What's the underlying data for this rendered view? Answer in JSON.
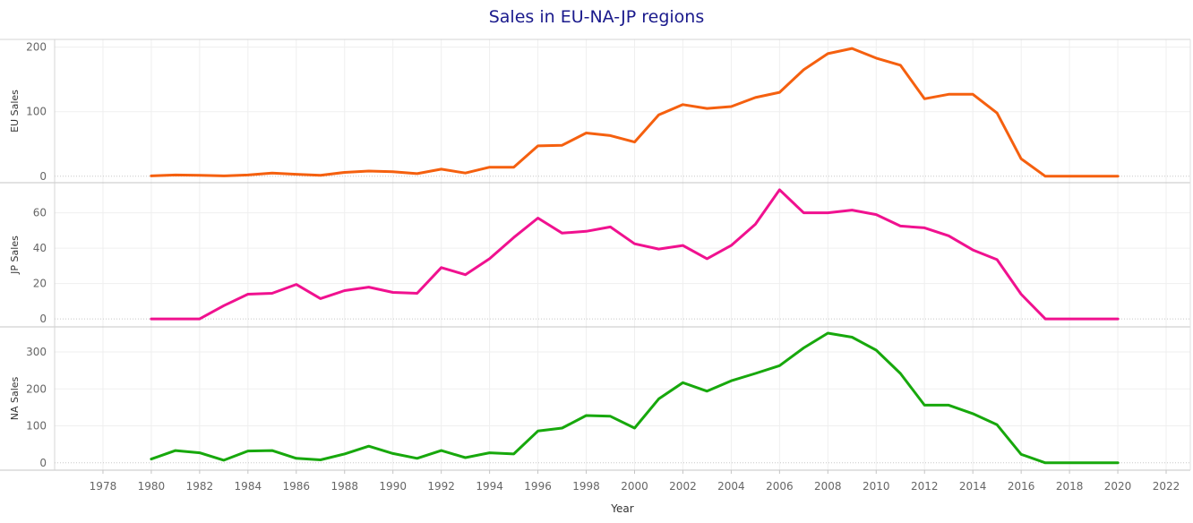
{
  "chart_data": {
    "type": "line",
    "title": "Sales in EU-NA-JP regions",
    "xlabel": "Year",
    "xlim": [
      1976,
      2023
    ],
    "x_ticks": [
      1978,
      1980,
      1982,
      1984,
      1986,
      1988,
      1990,
      1992,
      1994,
      1996,
      1998,
      2000,
      2002,
      2004,
      2006,
      2008,
      2010,
      2012,
      2014,
      2016,
      2018,
      2020,
      2022
    ],
    "grid": true,
    "x": [
      1980,
      1981,
      1982,
      1983,
      1984,
      1985,
      1986,
      1987,
      1988,
      1989,
      1990,
      1991,
      1992,
      1993,
      1994,
      1995,
      1996,
      1997,
      1998,
      1999,
      2000,
      2001,
      2002,
      2003,
      2004,
      2005,
      2006,
      2007,
      2008,
      2009,
      2010,
      2011,
      2012,
      2013,
      2014,
      2015,
      2016,
      2017,
      2018,
      2019,
      2020
    ],
    "series": [
      {
        "name": "EU Sales",
        "ylabel": "EU Sales",
        "color": "#f5600f",
        "ylim": [
          -10,
          212
        ],
        "y_ticks": [
          0,
          100,
          200
        ],
        "values": [
          0.5,
          2,
          1.5,
          0.5,
          2,
          5,
          3,
          1.5,
          6,
          8,
          7,
          4,
          11,
          5,
          14,
          14,
          47,
          48,
          67,
          63,
          53,
          95,
          111,
          105,
          108,
          122,
          130,
          165,
          190,
          198,
          183,
          172,
          120,
          127,
          127,
          98,
          27,
          0,
          0,
          0,
          0
        ]
      },
      {
        "name": "JP Sales",
        "ylabel": "JP Sales",
        "color": "#f0118f",
        "ylim": [
          -4.5,
          77
        ],
        "y_ticks": [
          0,
          20,
          40,
          60
        ],
        "values": [
          0,
          0,
          0,
          7.5,
          14,
          14.5,
          19.5,
          11.5,
          16,
          18,
          15,
          14.5,
          29,
          25,
          34,
          46,
          57,
          48.5,
          49.5,
          52,
          42.5,
          39.5,
          41.5,
          34,
          41.5,
          53.5,
          73,
          60,
          60,
          61.5,
          59,
          52.5,
          51.5,
          47,
          39,
          33.5,
          14,
          0,
          0,
          0,
          0
        ]
      },
      {
        "name": "NA Sales",
        "ylabel": "NA Sales",
        "color": "#17a80c",
        "ylim": [
          -20,
          368
        ],
        "y_ticks": [
          0,
          100,
          200,
          300
        ],
        "values": [
          10,
          33,
          27,
          7,
          32,
          33,
          12,
          8,
          24,
          45,
          25,
          12,
          33,
          14,
          27,
          24,
          86,
          94,
          128,
          126,
          94,
          173,
          217,
          194,
          222,
          242,
          263,
          311,
          351,
          340,
          305,
          242,
          156,
          156,
          133,
          103,
          23,
          0,
          0,
          0,
          0
        ]
      }
    ]
  }
}
